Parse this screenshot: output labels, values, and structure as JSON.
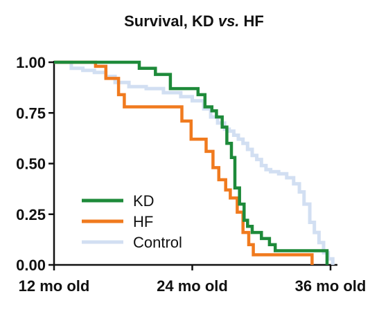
{
  "chart_data": {
    "type": "line",
    "step": true,
    "title": "Survival, KD vs. HF",
    "title_parts": [
      {
        "text": "Survival, KD ",
        "italic": false
      },
      {
        "text": "vs.",
        "italic": true
      },
      {
        "text": " HF",
        "italic": false
      }
    ],
    "xlabel": "",
    "ylabel": "",
    "xlim": [
      12,
      36.6
    ],
    "ylim": [
      0,
      1
    ],
    "x_ticks": [
      {
        "value": 12,
        "label": "12 mo old"
      },
      {
        "value": 24,
        "label": "24 mo old"
      },
      {
        "value": 36,
        "label": "36 mo old"
      }
    ],
    "y_ticks": [
      {
        "value": 0,
        "label": "0.00"
      },
      {
        "value": 0.25,
        "label": "0.25"
      },
      {
        "value": 0.5,
        "label": "0.50"
      },
      {
        "value": 0.75,
        "label": "0.75"
      },
      {
        "value": 1,
        "label": "1.00"
      }
    ],
    "grid": false,
    "legend_position": "bottom-left",
    "series": [
      {
        "name": "KD",
        "color": "#1e8a3a",
        "x": [
          12,
          19.4,
          20.8,
          22.1,
          22.6,
          24.5,
          25.1,
          25.7,
          26.1,
          26.6,
          27.0,
          27.4,
          27.7,
          28.1,
          28.5,
          28.8,
          29.2,
          30.0,
          30.7,
          31.2,
          35.3,
          35.7
        ],
        "y": [
          1.0,
          0.97,
          0.94,
          0.87,
          0.87,
          0.84,
          0.78,
          0.76,
          0.73,
          0.68,
          0.6,
          0.53,
          0.38,
          0.3,
          0.22,
          0.19,
          0.16,
          0.13,
          0.1,
          0.07,
          0.07,
          0.0
        ]
      },
      {
        "name": "HF",
        "color": "#f07a1e",
        "x": [
          12,
          15.6,
          16.5,
          17.6,
          18.1,
          18.7,
          23.1,
          23.9,
          25.2,
          25.8,
          26.3,
          26.9,
          27.3,
          27.9,
          28.4,
          28.9,
          29.3,
          30.7,
          34.4
        ],
        "y": [
          1.0,
          0.98,
          0.92,
          0.84,
          0.78,
          0.78,
          0.71,
          0.62,
          0.56,
          0.48,
          0.42,
          0.37,
          0.33,
          0.26,
          0.16,
          0.1,
          0.05,
          0.05,
          0.0
        ]
      },
      {
        "name": "Control",
        "color": "#d2dff2",
        "x": [
          12,
          13.5,
          14.5,
          15.5,
          16.5,
          17.3,
          18.5,
          20.0,
          21.5,
          23.0,
          24.0,
          25.0,
          25.6,
          26.2,
          26.8,
          27.2,
          27.6,
          28.0,
          28.4,
          28.8,
          29.2,
          29.6,
          30.0,
          30.4,
          30.8,
          31.5,
          32.2,
          32.8,
          33.3,
          33.7,
          34.2,
          34.6,
          35.0,
          35.4,
          35.8,
          36.2
        ],
        "y": [
          1.0,
          0.97,
          0.96,
          0.95,
          0.93,
          0.9,
          0.88,
          0.87,
          0.85,
          0.83,
          0.81,
          0.77,
          0.73,
          0.7,
          0.67,
          0.66,
          0.64,
          0.62,
          0.6,
          0.57,
          0.54,
          0.52,
          0.49,
          0.47,
          0.46,
          0.45,
          0.43,
          0.4,
          0.36,
          0.3,
          0.21,
          0.16,
          0.11,
          0.06,
          0.03,
          0.0
        ]
      }
    ]
  }
}
